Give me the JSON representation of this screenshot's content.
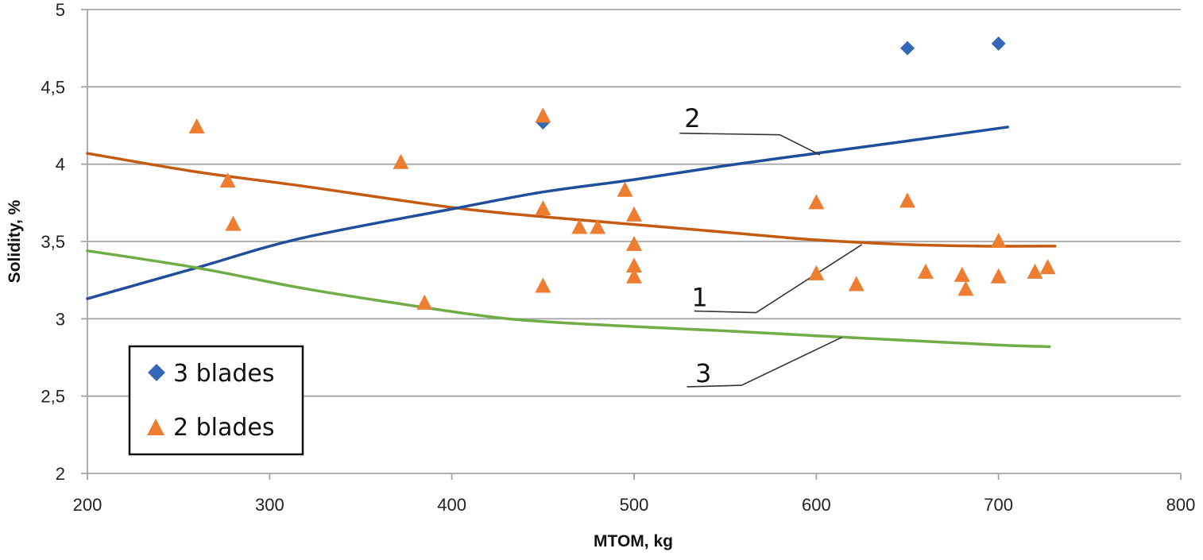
{
  "chart_data": {
    "type": "scatter",
    "title": "",
    "xlabel": "MTOM, kg",
    "ylabel": "Solidity, %",
    "xlim": [
      200,
      800
    ],
    "ylim": [
      2,
      5
    ],
    "x_ticks": [
      200,
      300,
      400,
      500,
      600,
      700,
      800
    ],
    "x_tick_labels": [
      "200",
      "300",
      "400",
      "500",
      "600",
      "700",
      "800"
    ],
    "y_ticks": [
      2,
      2.5,
      3,
      3.5,
      4,
      4.5,
      5
    ],
    "y_tick_labels": [
      "2",
      "2,5",
      "3",
      "3,5",
      "4",
      "4,5",
      "5"
    ],
    "grid": "horizontal",
    "legend_position": "bottom-left",
    "series": [
      {
        "name": "3 blades",
        "marker": "diamond",
        "color": "#3567b7",
        "points": [
          {
            "x": 450,
            "y": 4.27
          },
          {
            "x": 650,
            "y": 4.75
          },
          {
            "x": 700,
            "y": 4.78
          }
        ]
      },
      {
        "name": "2 blades",
        "marker": "triangle",
        "color": "#ed7d31",
        "points": [
          {
            "x": 260,
            "y": 4.24
          },
          {
            "x": 277,
            "y": 3.89
          },
          {
            "x": 280,
            "y": 3.61
          },
          {
            "x": 372,
            "y": 4.01
          },
          {
            "x": 385,
            "y": 3.1
          },
          {
            "x": 450,
            "y": 4.31
          },
          {
            "x": 450,
            "y": 3.71
          },
          {
            "x": 450,
            "y": 3.21
          },
          {
            "x": 470,
            "y": 3.59
          },
          {
            "x": 480,
            "y": 3.59
          },
          {
            "x": 495,
            "y": 3.83
          },
          {
            "x": 500,
            "y": 3.67
          },
          {
            "x": 500,
            "y": 3.48
          },
          {
            "x": 500,
            "y": 3.34
          },
          {
            "x": 500,
            "y": 3.27
          },
          {
            "x": 600,
            "y": 3.75
          },
          {
            "x": 600,
            "y": 3.29
          },
          {
            "x": 622,
            "y": 3.22
          },
          {
            "x": 650,
            "y": 3.76
          },
          {
            "x": 660,
            "y": 3.3
          },
          {
            "x": 680,
            "y": 3.28
          },
          {
            "x": 682,
            "y": 3.19
          },
          {
            "x": 700,
            "y": 3.5
          },
          {
            "x": 700,
            "y": 3.27
          },
          {
            "x": 720,
            "y": 3.3
          },
          {
            "x": 727,
            "y": 3.33
          }
        ]
      }
    ],
    "curves": [
      {
        "label": "1",
        "color": "#c55a11",
        "points": [
          {
            "x": 200,
            "y": 4.07
          },
          {
            "x": 260,
            "y": 3.95
          },
          {
            "x": 317,
            "y": 3.86
          },
          {
            "x": 400,
            "y": 3.72
          },
          {
            "x": 450,
            "y": 3.66
          },
          {
            "x": 500,
            "y": 3.61
          },
          {
            "x": 550,
            "y": 3.56
          },
          {
            "x": 600,
            "y": 3.51
          },
          {
            "x": 650,
            "y": 3.48
          },
          {
            "x": 690,
            "y": 3.47
          },
          {
            "x": 731,
            "y": 3.47
          }
        ]
      },
      {
        "label": "2",
        "color": "#1f4e9c",
        "points": [
          {
            "x": 200,
            "y": 3.13
          },
          {
            "x": 260,
            "y": 3.33
          },
          {
            "x": 317,
            "y": 3.52
          },
          {
            "x": 400,
            "y": 3.71
          },
          {
            "x": 450,
            "y": 3.82
          },
          {
            "x": 500,
            "y": 3.9
          },
          {
            "x": 550,
            "y": 3.99
          },
          {
            "x": 600,
            "y": 4.07
          },
          {
            "x": 650,
            "y": 4.15
          },
          {
            "x": 705,
            "y": 4.24
          }
        ]
      },
      {
        "label": "3",
        "color": "#70ad47",
        "points": [
          {
            "x": 200,
            "y": 3.44
          },
          {
            "x": 260,
            "y": 3.33
          },
          {
            "x": 317,
            "y": 3.2
          },
          {
            "x": 370,
            "y": 3.1
          },
          {
            "x": 431,
            "y": 3.0
          },
          {
            "x": 500,
            "y": 2.95
          },
          {
            "x": 553,
            "y": 2.92
          },
          {
            "x": 600,
            "y": 2.89
          },
          {
            "x": 650,
            "y": 2.86
          },
          {
            "x": 700,
            "y": 2.83
          },
          {
            "x": 728,
            "y": 2.82
          }
        ]
      }
    ],
    "annotations": [
      {
        "text": "2",
        "label_at": {
          "x": 532,
          "y": 4.22
        },
        "leader": [
          {
            "x": 525,
            "y": 4.2
          },
          {
            "x": 580,
            "y": 4.19
          },
          {
            "x": 602,
            "y": 4.06
          }
        ]
      },
      {
        "text": "1",
        "label_at": {
          "x": 536,
          "y": 3.06
        },
        "leader": [
          {
            "x": 533,
            "y": 3.05
          },
          {
            "x": 567,
            "y": 3.04
          },
          {
            "x": 625,
            "y": 3.48
          }
        ]
      },
      {
        "text": "3",
        "label_at": {
          "x": 538,
          "y": 2.57
        },
        "leader": [
          {
            "x": 529,
            "y": 2.56
          },
          {
            "x": 559,
            "y": 2.57
          },
          {
            "x": 614,
            "y": 2.88
          }
        ]
      }
    ]
  }
}
